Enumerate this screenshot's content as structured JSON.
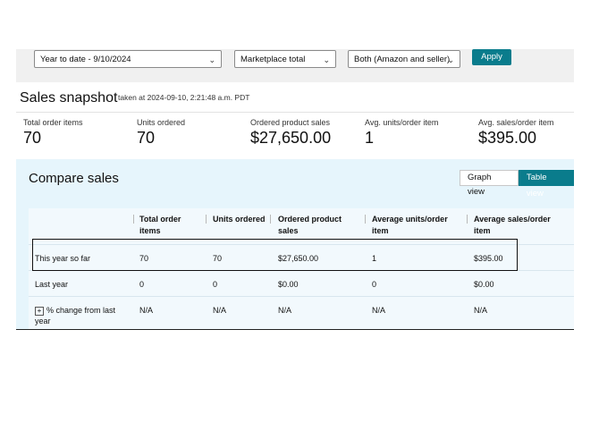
{
  "filters": {
    "date_range": "Year to date - 9/10/2024",
    "marketplace": "Marketplace total",
    "fulfillment": "Both (Amazon and seller)",
    "apply_label": "Apply"
  },
  "snapshot": {
    "title": "Sales snapshot",
    "timestamp": "taken at 2024-09-10, 2:21:48 a.m. PDT",
    "metrics": [
      {
        "label": "Total order items",
        "value": "70"
      },
      {
        "label": "Units ordered",
        "value": "70"
      },
      {
        "label": "Ordered product sales",
        "value": "$27,650.00"
      },
      {
        "label": "Avg. units/order item",
        "value": "1"
      },
      {
        "label": "Avg. sales/order item",
        "value": "$395.00"
      }
    ]
  },
  "compare": {
    "title": "Compare sales",
    "graph_view_label": "Graph view",
    "table_view_label": "Table view",
    "columns": [
      "",
      "Total order items",
      "Units ordered",
      "Ordered product sales",
      "Average units/order item",
      "Average sales/order item"
    ],
    "rows": [
      {
        "label": "This year so far",
        "cells": [
          "70",
          "70",
          "$27,650.00",
          "1",
          "$395.00"
        ]
      },
      {
        "label": "Last year",
        "cells": [
          "0",
          "0",
          "$0.00",
          "0",
          "$0.00"
        ]
      },
      {
        "label": "% change from last year",
        "cells": [
          "N/A",
          "N/A",
          "N/A",
          "N/A",
          "N/A"
        ]
      }
    ]
  }
}
